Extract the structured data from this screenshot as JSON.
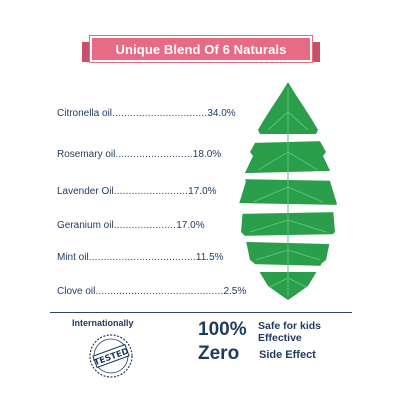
{
  "banner": {
    "title": "Unique Blend Of 6 Naturals"
  },
  "ingredients": [
    {
      "name": "Citronella oil",
      "dots": "................................",
      "value": "34.0%"
    },
    {
      "name": "Rosemary oil",
      "dots": "..........................",
      "value": "18.0%"
    },
    {
      "name": "Lavender Oil",
      "dots": ".........................",
      "value": "17.0%"
    },
    {
      "name": "Geranium oil",
      "dots": ".....................",
      "value": "17.0%"
    },
    {
      "name": "Mint oil",
      "dots": "....................................",
      "value": "11.5%"
    },
    {
      "name": "Clove oil",
      "dots": "...........................................",
      "value": "2.5%"
    }
  ],
  "badge": {
    "caption": "Internationally",
    "stamp": "TESTED"
  },
  "claims": {
    "percent": "100%",
    "percent_text_1": "Safe for kids",
    "percent_text_2": "Effective",
    "zero": "Zero",
    "zero_text": "Side Effect"
  },
  "colors": {
    "banner": "#e86b85",
    "leaf": "#2a9e4a",
    "text": "#1f3a5f"
  },
  "icons": {
    "leaf": "leaf-icon",
    "stamp": "tested-stamp-icon"
  }
}
